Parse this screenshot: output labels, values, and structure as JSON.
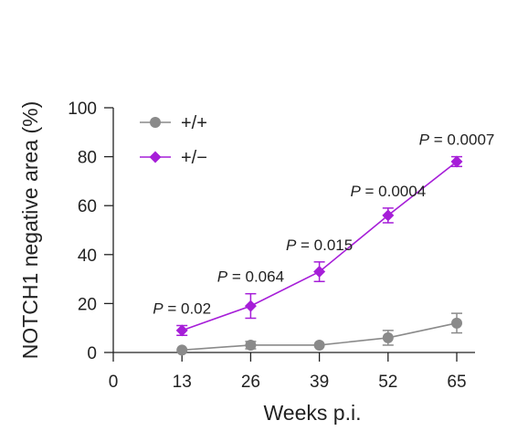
{
  "chart_data": {
    "type": "line",
    "xlabel": "Weeks p.i.",
    "ylabel": "NOTCH1 negative area (%)",
    "xlim": [
      0,
      65
    ],
    "ylim": [
      0,
      100
    ],
    "x_ticks": [
      0,
      13,
      26,
      39,
      52,
      65
    ],
    "y_ticks": [
      0,
      20,
      40,
      60,
      80,
      100
    ],
    "grid": false,
    "legend_position": "top-left",
    "series": [
      {
        "name": "+/+",
        "marker": "circle",
        "color": "#8a8a8a",
        "x": [
          13,
          26,
          39,
          52,
          65
        ],
        "values": [
          1,
          3,
          3,
          6,
          12
        ],
        "error": [
          0,
          1.5,
          0,
          3,
          4
        ]
      },
      {
        "name": "+/−",
        "marker": "diamond",
        "color": "#a61ed8",
        "x": [
          13,
          26,
          39,
          52,
          65
        ],
        "values": [
          9,
          19,
          33,
          56,
          78
        ],
        "error": [
          2,
          5,
          4,
          3,
          2
        ]
      }
    ],
    "annotations": [
      {
        "x": 13,
        "prefix": "P",
        "text": " = 0.02"
      },
      {
        "x": 26,
        "prefix": "P",
        "text": " = 0.064"
      },
      {
        "x": 39,
        "prefix": "P",
        "text": " = 0.015"
      },
      {
        "x": 52,
        "prefix": "P",
        "text": " = 0.0004"
      },
      {
        "x": 65,
        "prefix": "P",
        "text": " = 0.0007"
      }
    ]
  }
}
